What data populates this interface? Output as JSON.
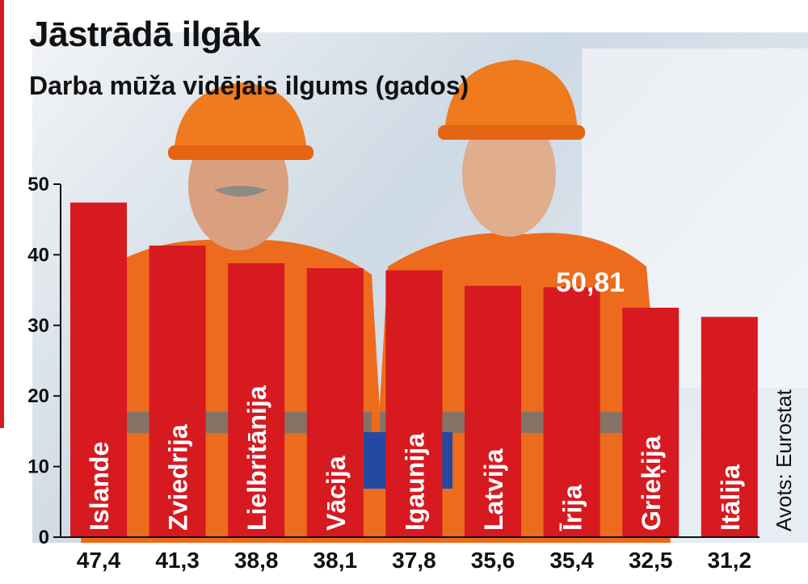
{
  "title": "Jāstrādā ilgāk",
  "subtitle": "Darba mūža vidējais ilgums (gados)",
  "source": "Avots: Eurostat",
  "colors": {
    "bar": "#d71920",
    "bar_label": "#ffffff",
    "axis_text": "#111111"
  },
  "chart_data": {
    "type": "bar",
    "categories": [
      "Islande",
      "Zviedrija",
      "Lielbritānija",
      "Vācija",
      "Igaunija",
      "Latvija",
      "Īrija",
      "Grieķija",
      "Itālija"
    ],
    "values": [
      47.4,
      41.3,
      38.8,
      38.1,
      37.8,
      35.6,
      35.4,
      32.5,
      31.2
    ],
    "value_labels": [
      "47,4",
      "41,3",
      "38,8",
      "38,1",
      "37,8",
      "35,6",
      "35,4",
      "32,5",
      "31,2"
    ],
    "y_ticks": [
      "0",
      "10",
      "20",
      "30",
      "40",
      "50"
    ],
    "ylim": [
      0,
      50
    ],
    "annotation": "50,81",
    "annotation_value": 50.81,
    "title": "Jāstrādā ilgāk",
    "xlabel": "",
    "ylabel": "",
    "grid": false
  }
}
